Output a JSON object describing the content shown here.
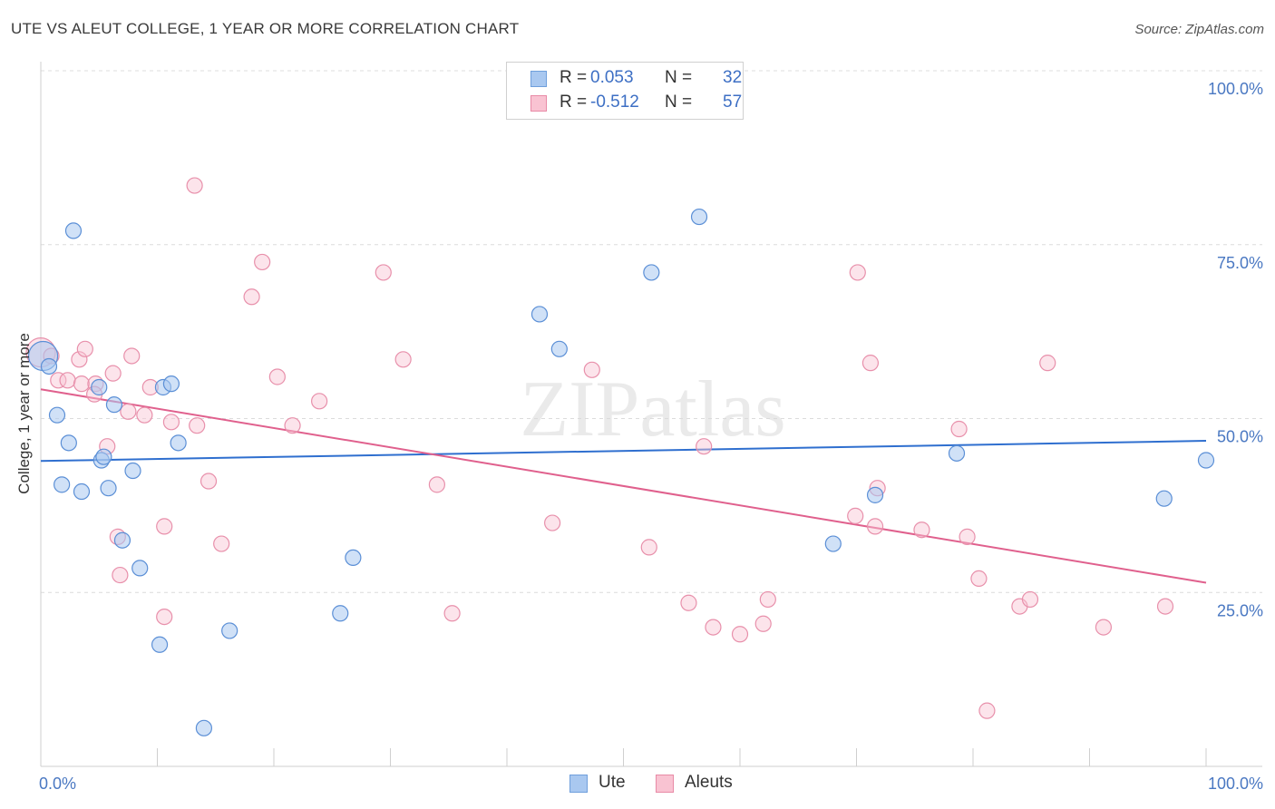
{
  "header": {
    "title": "UTE VS ALEUT COLLEGE, 1 YEAR OR MORE CORRELATION CHART",
    "source": "Source: ZipAtlas.com"
  },
  "watermark": "ZIPatlas",
  "legend": {
    "rows": [
      {
        "label": "R =",
        "r": "0.053",
        "n_label": "N =",
        "n": "32",
        "color": "#a9c8f0",
        "border": "#6f9fdc"
      },
      {
        "label": "R =",
        "r": "-0.512",
        "n_label": "N =",
        "n": "57",
        "color": "#f9c3d2",
        "border": "#e88aa6"
      }
    ]
  },
  "bottom_legend": [
    {
      "name": "Ute",
      "color": "#a9c8f0",
      "border": "#6f9fdc"
    },
    {
      "name": "Aleuts",
      "color": "#f9c3d2",
      "border": "#e88aa6"
    }
  ],
  "colors": {
    "ute_fill": "rgba(169,200,240,0.55)",
    "ute_stroke": "#5b8fd6",
    "ute_line": "#2f6fcf",
    "aleut_fill": "rgba(249,195,210,0.45)",
    "aleut_stroke": "#e890ab",
    "aleut_line": "#e0608d",
    "tick_text": "#4a78c2"
  },
  "chart_data": {
    "type": "scatter",
    "title": "UTE VS ALEUT COLLEGE, 1 YEAR OR MORE CORRELATION CHART",
    "xlabel": "",
    "ylabel": "College, 1 year or more",
    "xlim": [
      0,
      100
    ],
    "ylim": [
      0,
      100
    ],
    "x_tick_labels": [
      "0.0%",
      "100.0%"
    ],
    "y_tick_labels": [
      "25.0%",
      "50.0%",
      "75.0%",
      "100.0%"
    ],
    "y_ticks": [
      25,
      50,
      75,
      100
    ],
    "grid": true,
    "legend_position": "top-center",
    "series": [
      {
        "name": "Ute",
        "trend": {
          "x": [
            0,
            100
          ],
          "y": [
            43.9,
            46.8
          ]
        },
        "points": [
          [
            0.2,
            59.0
          ],
          [
            0.7,
            57.5
          ],
          [
            2.8,
            77.0
          ],
          [
            1.4,
            50.5
          ],
          [
            2.4,
            46.5
          ],
          [
            1.8,
            40.5
          ],
          [
            3.5,
            39.5
          ],
          [
            5.0,
            54.5
          ],
          [
            5.2,
            44.0
          ],
          [
            5.4,
            44.5
          ],
          [
            5.8,
            40.0
          ],
          [
            6.3,
            52.0
          ],
          [
            7.0,
            32.5
          ],
          [
            7.9,
            42.5
          ],
          [
            8.5,
            28.5
          ],
          [
            10.5,
            54.5
          ],
          [
            11.2,
            55.0
          ],
          [
            11.8,
            46.5
          ],
          [
            10.2,
            17.5
          ],
          [
            14.0,
            5.5
          ],
          [
            16.2,
            19.5
          ],
          [
            26.8,
            30.0
          ],
          [
            25.7,
            22.0
          ],
          [
            42.8,
            65.0
          ],
          [
            44.5,
            60.0
          ],
          [
            52.4,
            71.0
          ],
          [
            56.5,
            79.0
          ],
          [
            68.0,
            32.0
          ],
          [
            71.6,
            39.0
          ],
          [
            78.6,
            45.0
          ],
          [
            96.4,
            38.5
          ],
          [
            100.0,
            44.0
          ]
        ]
      },
      {
        "name": "Aleuts",
        "trend": {
          "x": [
            0,
            100
          ],
          "y": [
            54.2,
            26.4
          ]
        },
        "points": [
          [
            0.0,
            59.5
          ],
          [
            0.9,
            59.0
          ],
          [
            1.5,
            55.5
          ],
          [
            2.3,
            55.5
          ],
          [
            3.3,
            58.5
          ],
          [
            3.8,
            60.0
          ],
          [
            3.5,
            55.0
          ],
          [
            4.7,
            55.0
          ],
          [
            4.6,
            53.5
          ],
          [
            5.7,
            46.0
          ],
          [
            6.2,
            56.5
          ],
          [
            6.6,
            33.0
          ],
          [
            6.8,
            27.5
          ],
          [
            7.5,
            51.0
          ],
          [
            7.8,
            59.0
          ],
          [
            8.9,
            50.5
          ],
          [
            9.4,
            54.5
          ],
          [
            10.6,
            34.5
          ],
          [
            10.6,
            21.5
          ],
          [
            11.2,
            49.5
          ],
          [
            13.4,
            49.0
          ],
          [
            13.2,
            83.5
          ],
          [
            14.4,
            41.0
          ],
          [
            15.5,
            32.0
          ],
          [
            18.1,
            67.5
          ],
          [
            19.0,
            72.5
          ],
          [
            20.3,
            56.0
          ],
          [
            21.6,
            49.0
          ],
          [
            23.9,
            52.5
          ],
          [
            29.4,
            71.0
          ],
          [
            31.1,
            58.5
          ],
          [
            34.0,
            40.5
          ],
          [
            35.3,
            22.0
          ],
          [
            43.9,
            35.0
          ],
          [
            47.3,
            57.0
          ],
          [
            52.2,
            31.5
          ],
          [
            55.6,
            23.5
          ],
          [
            56.9,
            46.0
          ],
          [
            57.7,
            20.0
          ],
          [
            60.0,
            19.0
          ],
          [
            62.4,
            24.0
          ],
          [
            62.0,
            20.5
          ],
          [
            69.9,
            36.0
          ],
          [
            70.1,
            71.0
          ],
          [
            71.2,
            58.0
          ],
          [
            71.8,
            40.0
          ],
          [
            71.6,
            34.5
          ],
          [
            75.6,
            34.0
          ],
          [
            78.8,
            48.5
          ],
          [
            79.5,
            33.0
          ],
          [
            80.5,
            27.0
          ],
          [
            81.2,
            8.0
          ],
          [
            84.0,
            23.0
          ],
          [
            84.9,
            24.0
          ],
          [
            86.4,
            58.0
          ],
          [
            91.2,
            20.0
          ],
          [
            96.5,
            23.0
          ]
        ]
      }
    ]
  }
}
